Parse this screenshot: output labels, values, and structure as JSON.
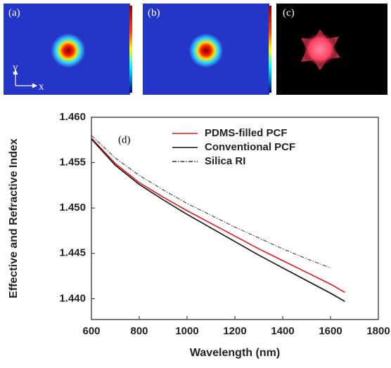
{
  "panels": [
    {
      "label": "(a)",
      "axis_labels": [
        "y",
        "x"
      ]
    },
    {
      "label": "(b)"
    },
    {
      "label": "(c)"
    }
  ],
  "chart_data": {
    "type": "line",
    "annotation": "(d)",
    "x_label": "Wavelength (nm)",
    "y_label": "Effective and Refractive Index",
    "x": [
      600,
      700,
      800,
      900,
      1000,
      1100,
      1200,
      1300,
      1400,
      1500,
      1600,
      1660
    ],
    "series": [
      {
        "name": "PDMS-filled PCF",
        "color": "#e8141b",
        "style": "solid",
        "values": [
          1.4577,
          1.4549,
          1.4528,
          1.4512,
          1.4497,
          1.4483,
          1.4469,
          1.4455,
          1.4442,
          1.4429,
          1.4416,
          1.4407
        ]
      },
      {
        "name": "Conventional PCF",
        "color": "#111111",
        "style": "solid",
        "values": [
          1.4576,
          1.4547,
          1.4526,
          1.4509,
          1.4493,
          1.4478,
          1.4463,
          1.4448,
          1.4434,
          1.442,
          1.4406,
          1.4397
        ]
      },
      {
        "name": "Silica RI",
        "color": "#333333",
        "style": "dashdot",
        "values": [
          1.458,
          1.4555,
          1.4536,
          1.452,
          1.4505,
          1.4492,
          1.4479,
          1.4467,
          1.4455,
          1.4444,
          1.4434,
          null
        ]
      }
    ],
    "xlim": [
      600,
      1800
    ],
    "xticks": [
      600,
      800,
      1000,
      1200,
      1400,
      1600,
      1800
    ],
    "ylim": [
      1.4377,
      1.46
    ],
    "yticks": [
      {
        "value": 1.46,
        "label": "1.460"
      },
      1.455,
      {
        "value": 1.45,
        "label": "1.450"
      },
      1.445,
      {
        "value": 1.44,
        "label": "1.440"
      }
    ],
    "legend": "upper right"
  }
}
